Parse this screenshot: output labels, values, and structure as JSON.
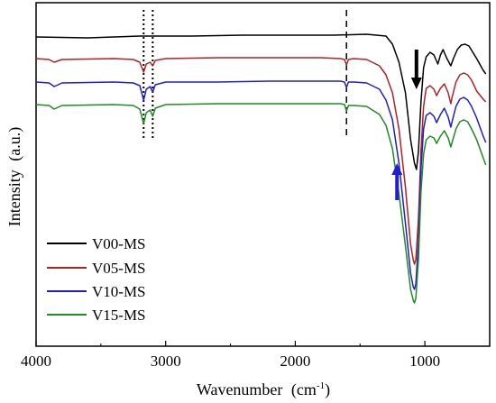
{
  "chart_data": {
    "type": "line",
    "xlabel_main": "Wavenumber",
    "xlabel_unit_pre": "(cm",
    "xlabel_unit_sup": "-1",
    "xlabel_unit_post": ")",
    "ylabel": "Intensity",
    "ylabel_unit": "(a.u.)",
    "xlim": [
      4000,
      500
    ],
    "x_reversed": true,
    "xticks": [
      4000,
      3000,
      2000,
      1000
    ],
    "xtick_labels": [
      "4000",
      "3000",
      "2000",
      "1000"
    ],
    "y_tick_labels_shown": false,
    "grid": false,
    "legend_position": "bottom-left",
    "reference_lines": [
      {
        "x": 3170,
        "style": "dotted"
      },
      {
        "x": 3100,
        "style": "dotted"
      },
      {
        "x": 1605,
        "style": "dashed"
      }
    ],
    "arrows": [
      {
        "x": 1065,
        "direction": "down",
        "color": "#000000"
      },
      {
        "x": 1215,
        "direction": "up",
        "color": "#1f1fd0"
      }
    ],
    "series": [
      {
        "name": "V00-MS",
        "color": "#000000",
        "points": [
          [
            4000,
            38
          ],
          [
            3600,
            39
          ],
          [
            3400,
            38
          ],
          [
            3200,
            37
          ],
          [
            2800,
            37
          ],
          [
            2400,
            36
          ],
          [
            2000,
            36
          ],
          [
            1700,
            36
          ],
          [
            1450,
            35
          ],
          [
            1300,
            37
          ],
          [
            1250,
            46
          ],
          [
            1200,
            66
          ],
          [
            1150,
            100
          ],
          [
            1110,
            152
          ],
          [
            1080,
            178
          ],
          [
            1065,
            185
          ],
          [
            1050,
            165
          ],
          [
            1030,
            110
          ],
          [
            1010,
            72
          ],
          [
            990,
            60
          ],
          [
            960,
            55
          ],
          [
            930,
            58
          ],
          [
            900,
            68
          ],
          [
            880,
            58
          ],
          [
            860,
            52
          ],
          [
            830,
            62
          ],
          [
            800,
            70
          ],
          [
            780,
            62
          ],
          [
            750,
            52
          ],
          [
            720,
            47
          ],
          [
            690,
            46
          ],
          [
            660,
            48
          ],
          [
            630,
            55
          ],
          [
            600,
            62
          ],
          [
            550,
            75
          ],
          [
            530,
            79
          ]
        ]
      },
      {
        "name": "V05-MS",
        "color": "#b22222",
        "points": [
          [
            4000,
            62
          ],
          [
            3900,
            63
          ],
          [
            3860,
            66
          ],
          [
            3800,
            63
          ],
          [
            3400,
            62
          ],
          [
            3250,
            63
          ],
          [
            3200,
            66
          ],
          [
            3170,
            77
          ],
          [
            3150,
            68
          ],
          [
            3120,
            66
          ],
          [
            3100,
            70
          ],
          [
            3080,
            64
          ],
          [
            3000,
            62
          ],
          [
            2600,
            61
          ],
          [
            2200,
            61
          ],
          [
            1800,
            61
          ],
          [
            1650,
            62
          ],
          [
            1620,
            63
          ],
          [
            1605,
            69
          ],
          [
            1590,
            63
          ],
          [
            1550,
            62
          ],
          [
            1450,
            63
          ],
          [
            1350,
            70
          ],
          [
            1300,
            80
          ],
          [
            1250,
            100
          ],
          [
            1200,
            140
          ],
          [
            1150,
            205
          ],
          [
            1110,
            268
          ],
          [
            1090,
            285
          ],
          [
            1080,
            290
          ],
          [
            1070,
            285
          ],
          [
            1050,
            240
          ],
          [
            1030,
            165
          ],
          [
            1010,
            115
          ],
          [
            990,
            95
          ],
          [
            960,
            92
          ],
          [
            930,
            96
          ],
          [
            910,
            103
          ],
          [
            880,
            95
          ],
          [
            850,
            90
          ],
          [
            820,
            100
          ],
          [
            800,
            112
          ],
          [
            790,
            105
          ],
          [
            760,
            88
          ],
          [
            730,
            80
          ],
          [
            700,
            78
          ],
          [
            670,
            80
          ],
          [
            640,
            86
          ],
          [
            600,
            98
          ],
          [
            550,
            107
          ],
          [
            530,
            110
          ]
        ]
      },
      {
        "name": "V10-MS",
        "color": "#1f1fd0",
        "points": [
          [
            4000,
            88
          ],
          [
            3900,
            89
          ],
          [
            3860,
            93
          ],
          [
            3800,
            89
          ],
          [
            3400,
            88
          ],
          [
            3250,
            89
          ],
          [
            3200,
            92
          ],
          [
            3170,
            108
          ],
          [
            3150,
            96
          ],
          [
            3120,
            93
          ],
          [
            3100,
            99
          ],
          [
            3080,
            91
          ],
          [
            3000,
            88
          ],
          [
            2600,
            88
          ],
          [
            2200,
            87
          ],
          [
            1800,
            87
          ],
          [
            1650,
            87
          ],
          [
            1620,
            88
          ],
          [
            1605,
            94
          ],
          [
            1590,
            88
          ],
          [
            1550,
            88
          ],
          [
            1450,
            89
          ],
          [
            1350,
            96
          ],
          [
            1300,
            108
          ],
          [
            1250,
            130
          ],
          [
            1200,
            178
          ],
          [
            1150,
            245
          ],
          [
            1110,
            300
          ],
          [
            1090,
            315
          ],
          [
            1080,
            318
          ],
          [
            1070,
            312
          ],
          [
            1050,
            265
          ],
          [
            1030,
            185
          ],
          [
            1010,
            140
          ],
          [
            990,
            125
          ],
          [
            960,
            122
          ],
          [
            930,
            126
          ],
          [
            910,
            133
          ],
          [
            880,
            124
          ],
          [
            850,
            117
          ],
          [
            820,
            127
          ],
          [
            800,
            138
          ],
          [
            790,
            132
          ],
          [
            760,
            115
          ],
          [
            730,
            107
          ],
          [
            700,
            105
          ],
          [
            670,
            108
          ],
          [
            640,
            115
          ],
          [
            600,
            128
          ],
          [
            550,
            148
          ],
          [
            530,
            155
          ]
        ]
      },
      {
        "name": "V15-MS",
        "color": "#228b22",
        "points": [
          [
            4000,
            113
          ],
          [
            3900,
            114
          ],
          [
            3860,
            118
          ],
          [
            3800,
            114
          ],
          [
            3400,
            113
          ],
          [
            3250,
            114
          ],
          [
            3200,
            118
          ],
          [
            3170,
            134
          ],
          [
            3150,
            122
          ],
          [
            3120,
            119
          ],
          [
            3100,
            126
          ],
          [
            3080,
            117
          ],
          [
            3000,
            113
          ],
          [
            2600,
            112
          ],
          [
            2200,
            112
          ],
          [
            1800,
            112
          ],
          [
            1650,
            112
          ],
          [
            1620,
            113
          ],
          [
            1605,
            120
          ],
          [
            1590,
            114
          ],
          [
            1550,
            114
          ],
          [
            1450,
            115
          ],
          [
            1350,
            124
          ],
          [
            1300,
            136
          ],
          [
            1250,
            162
          ],
          [
            1200,
            212
          ],
          [
            1150,
            270
          ],
          [
            1110,
            318
          ],
          [
            1090,
            330
          ],
          [
            1080,
            333
          ],
          [
            1070,
            328
          ],
          [
            1050,
            285
          ],
          [
            1030,
            210
          ],
          [
            1010,
            168
          ],
          [
            990,
            152
          ],
          [
            960,
            148
          ],
          [
            930,
            150
          ],
          [
            910,
            156
          ],
          [
            880,
            148
          ],
          [
            850,
            142
          ],
          [
            820,
            150
          ],
          [
            800,
            160
          ],
          [
            790,
            155
          ],
          [
            760,
            140
          ],
          [
            730,
            132
          ],
          [
            700,
            130
          ],
          [
            670,
            132
          ],
          [
            640,
            140
          ],
          [
            600,
            152
          ],
          [
            550,
            172
          ],
          [
            530,
            180
          ]
        ]
      }
    ]
  }
}
